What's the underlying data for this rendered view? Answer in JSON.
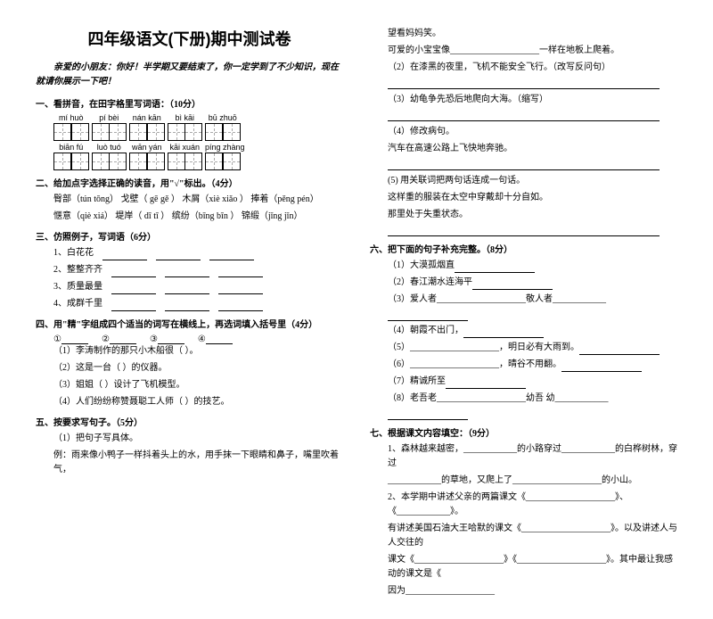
{
  "title": "四年级语文(下册)期中测试卷",
  "intro": "亲爱的小朋友：你好！半学期又要结束了，你一定学到了不少知识，现在就请你展示一下吧！",
  "s1": {
    "h": "一、看拼音，在田字格里写词语：（10分）",
    "r1": [
      [
        "mí",
        "huò"
      ],
      [
        "pí",
        "bèi"
      ],
      [
        "nán",
        "kān"
      ],
      [
        "bì",
        "kāi"
      ],
      [
        "bū",
        "zhuō"
      ]
    ],
    "r2": [
      [
        "biān",
        "fú"
      ],
      [
        "luò",
        "tuó"
      ],
      [
        "wān",
        "yán"
      ],
      [
        "kāi",
        "xuán"
      ],
      [
        "píng",
        "zhàng"
      ]
    ]
  },
  "s2": {
    "h": "二、给加点字选择正确的读音，用\"√\"标出。（4分）",
    "l1": "臀部（tún tōng）    戈壁（ gē gě ）    木屑（xiè xiǎo ）    捧着（pěng pén）",
    "l2": "惬意（qiè  xiá）    堤岸（ dī tī ）      缤纷（bīng bīn ）    锦缎（jǐng jǐn）"
  },
  "s3": {
    "h": "三、仿照例子，写词语（6分）",
    "i": [
      "1、白花花",
      "2、整整齐齐",
      "3、质量最量",
      "4、成群千里"
    ]
  },
  "s4": {
    "h": "四、用\"精\"字组成四个适当的词写在横线上，再选词填入括号里（4分）",
    "o": [
      "①",
      "②",
      "③",
      "④"
    ],
    "i": [
      "（1）李涛制作的那只小木船很（        ）。",
      "（2）这是一台（         ）的仪器。",
      "（3）姐姐（         ）设计了飞机模型。",
      "（4）人们纷纷称赞聂聪工人师（         ）的技艺。"
    ]
  },
  "s5": {
    "h": "五、按要求写句子。（5分）",
    "l1": "（1）把句子写具体。",
    "l2": "例：雨来像小鸭子一样抖着头上的水，用手抹一下眼睛和鼻子，嘴里吹着气，",
    "r1": "       望看妈妈笑。",
    "r2": "       可爱的小宝宝像____________________一样在地板上爬着。",
    "l3": "（2）在漆黑的夜里，飞机不能安全飞行。（改写反问句）",
    "l4": "（3）幼龟争先恐后地爬向大海。（缩写）",
    "l5": "（4）修改病句。",
    "l5a": "       汽车在高速公路上飞快地奔驰。",
    "l6": "(5) 用关联词把两句话连成一句话。",
    "l6a": "       这样重的服装在太空中穿戴却十分自如。",
    "l6b": "       那里处于失重状态。"
  },
  "s6": {
    "h": "六、把下面的句子补充完整。（8分）",
    "i": [
      "（1）大漠孤烟直",
      "（2）春江潮水连海平",
      "（3）爱人者____________________敬人者____________",
      "（4）朝霞不出门，",
      "（5）____________________，明日必有大雨到。",
      "（6）____________________，晴谷不用翻。",
      "（7）精诚所至",
      "（8）老吾老____________________幼吾 幼____________"
    ]
  },
  "s7": {
    "h": "七、根据课文内容填空：（9分）",
    "l1": "1、森林越来越密，____________的小路穿过____________的白桦树林，穿过",
    "l2": "____________的草地，又爬上了____________________的小山。",
    "l3": "2、本学期中讲述父亲的两篇课文《____________________》、《____________》。",
    "l4": "有讲述美国石油大王哈默的课文《____________________》。以及讲述人与人交往的",
    "l5": "课文《____________________》《____________________》。其中最让我感动的课文是《",
    "l6": "因为____________________"
  }
}
